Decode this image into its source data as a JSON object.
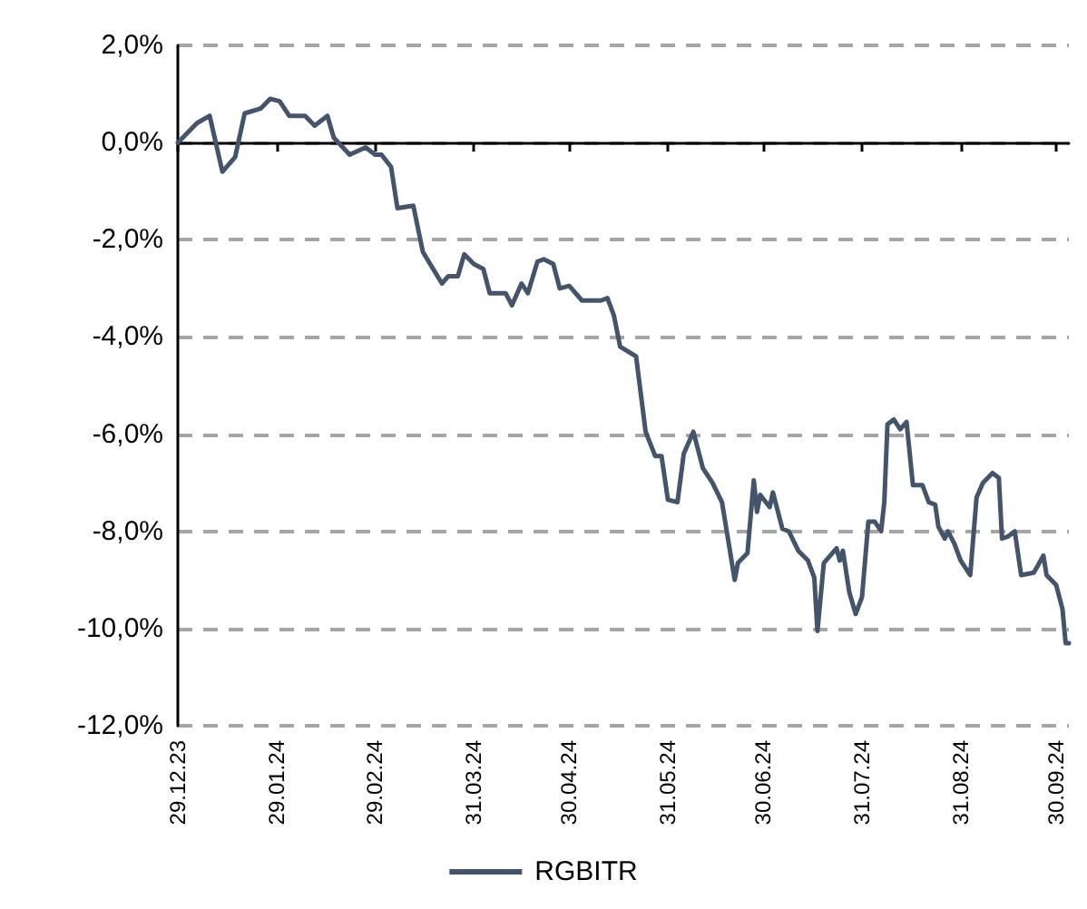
{
  "chart_data": {
    "type": "line",
    "legend": "bottom",
    "grid": "y",
    "marker": "none",
    "line_style": "solid",
    "xlim": [
      "2023-12-29",
      "2024-10-04"
    ],
    "xticks": [
      {
        "value": "2023-12-29",
        "label": "29.12.23"
      },
      {
        "value": "2024-01-29",
        "label": "29.01.24"
      },
      {
        "value": "2024-02-29",
        "label": "29.02.24"
      },
      {
        "value": "2024-03-31",
        "label": "31.03.24"
      },
      {
        "value": "2024-04-30",
        "label": "30.04.24"
      },
      {
        "value": "2024-05-31",
        "label": "31.05.24"
      },
      {
        "value": "2024-06-30",
        "label": "30.06.24"
      },
      {
        "value": "2024-07-31",
        "label": "31.07.24"
      },
      {
        "value": "2024-08-31",
        "label": "31.08.24"
      },
      {
        "value": "2024-09-30",
        "label": "30.09.24"
      }
    ],
    "ylim": [
      -12,
      2
    ],
    "yticks": [
      {
        "value": -12,
        "label": "-12,0%"
      },
      {
        "value": -10,
        "label": "-10,0%"
      },
      {
        "value": -8,
        "label": "-8,0%"
      },
      {
        "value": -6,
        "label": "-6,0%"
      },
      {
        "value": -4,
        "label": "-4,0%"
      },
      {
        "value": -2,
        "label": "-2,0%"
      },
      {
        "value": 0,
        "label": "0,0%"
      },
      {
        "value": 2,
        "label": "2,0%"
      }
    ],
    "x": [
      "2023-12-29",
      "2024-01-04",
      "2024-01-08",
      "2024-01-12",
      "2024-01-16",
      "2024-01-19",
      "2024-01-24",
      "2024-01-27",
      "2024-01-30",
      "2024-02-02",
      "2024-02-07",
      "2024-02-10",
      "2024-02-14",
      "2024-02-16",
      "2024-02-21",
      "2024-02-26",
      "2024-02-29",
      "2024-03-02",
      "2024-03-05",
      "2024-03-07",
      "2024-03-12",
      "2024-03-15",
      "2024-03-21",
      "2024-03-23",
      "2024-03-26",
      "2024-03-28",
      "2024-03-31",
      "2024-04-03",
      "2024-04-05",
      "2024-04-10",
      "2024-04-12",
      "2024-04-15",
      "2024-04-17",
      "2024-04-20",
      "2024-04-22",
      "2024-04-25",
      "2024-04-27",
      "2024-04-30",
      "2024-05-04",
      "2024-05-10",
      "2024-05-12",
      "2024-05-14",
      "2024-05-16",
      "2024-05-21",
      "2024-05-24",
      "2024-05-27",
      "2024-05-29",
      "2024-05-31",
      "2024-06-03",
      "2024-06-05",
      "2024-06-08",
      "2024-06-11",
      "2024-06-14",
      "2024-06-17",
      "2024-06-21",
      "2024-06-22",
      "2024-06-25",
      "2024-06-27",
      "2024-06-28",
      "2024-06-29",
      "2024-07-02",
      "2024-07-03",
      "2024-07-06",
      "2024-07-08",
      "2024-07-11",
      "2024-07-14",
      "2024-07-16",
      "2024-07-17",
      "2024-07-19",
      "2024-07-23",
      "2024-07-24",
      "2024-07-25",
      "2024-07-27",
      "2024-07-29",
      "2024-07-31",
      "2024-08-02",
      "2024-08-04",
      "2024-08-06",
      "2024-08-07",
      "2024-08-08",
      "2024-08-10",
      "2024-08-12",
      "2024-08-14",
      "2024-08-16",
      "2024-08-19",
      "2024-08-21",
      "2024-08-23",
      "2024-08-24",
      "2024-08-26",
      "2024-08-27",
      "2024-08-29",
      "2024-08-31",
      "2024-09-03",
      "2024-09-05",
      "2024-09-07",
      "2024-09-10",
      "2024-09-12",
      "2024-09-13",
      "2024-09-15",
      "2024-09-17",
      "2024-09-19",
      "2024-09-23",
      "2024-09-26",
      "2024-09-27",
      "2024-09-30",
      "2024-10-02",
      "2024-10-03",
      "2024-10-04"
    ],
    "series": [
      {
        "name": "RGBITR",
        "color": "#44546a",
        "values": [
          0.0,
          0.4,
          0.55,
          -0.6,
          -0.3,
          0.6,
          0.7,
          0.9,
          0.85,
          0.55,
          0.55,
          0.35,
          0.55,
          0.1,
          -0.25,
          -0.1,
          -0.25,
          -0.25,
          -0.5,
          -1.35,
          -1.3,
          -2.25,
          -2.9,
          -2.75,
          -2.75,
          -2.3,
          -2.5,
          -2.6,
          -3.1,
          -3.1,
          -3.35,
          -2.9,
          -3.1,
          -2.45,
          -2.4,
          -2.5,
          -3.0,
          -2.95,
          -3.25,
          -3.25,
          -3.2,
          -3.55,
          -4.2,
          -4.4,
          -5.95,
          -6.45,
          -6.45,
          -7.35,
          -7.4,
          -6.4,
          -5.95,
          -6.7,
          -7.0,
          -7.4,
          -9.0,
          -8.65,
          -8.45,
          -6.95,
          -7.6,
          -7.25,
          -7.5,
          -7.2,
          -7.95,
          -8.0,
          -8.4,
          -8.6,
          -8.95,
          -10.05,
          -8.65,
          -8.35,
          -8.6,
          -8.4,
          -9.25,
          -9.7,
          -9.35,
          -7.8,
          -7.8,
          -8.0,
          -7.4,
          -5.8,
          -5.7,
          -5.9,
          -5.75,
          -7.05,
          -7.05,
          -7.4,
          -7.45,
          -7.9,
          -8.15,
          -8.0,
          -8.25,
          -8.6,
          -8.9,
          -7.3,
          -7.0,
          -6.8,
          -6.9,
          -8.15,
          -8.1,
          -8.0,
          -8.9,
          -8.85,
          -8.5,
          -8.9,
          -9.1,
          -9.6,
          -10.3,
          -10.3
        ]
      }
    ]
  }
}
